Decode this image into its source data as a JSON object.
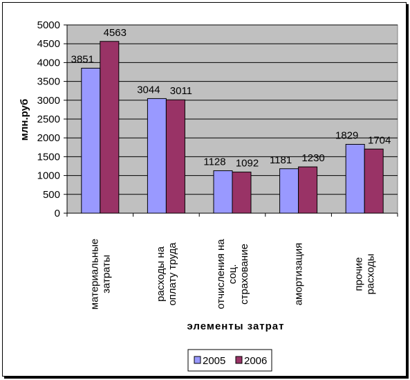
{
  "chart_data": {
    "type": "bar",
    "title": "",
    "xlabel": "элементы затрат",
    "ylabel": "млн.руб",
    "ylim": [
      0,
      5000
    ],
    "yticks": [
      "0",
      "500",
      "1000",
      "1500",
      "2000",
      "2500",
      "3000",
      "3500",
      "4000",
      "4500",
      "5000"
    ],
    "grid": true,
    "legend": "bottom",
    "categories": [
      [
        "материальные",
        "затраты"
      ],
      [
        "расходы на",
        "оплату труда"
      ],
      [
        "отчисления на",
        "соц.",
        "страхование"
      ],
      [
        "амортизация"
      ],
      [
        "прочие",
        "расходы"
      ]
    ],
    "series": [
      {
        "name": "2005",
        "color": "#9999ff",
        "values": [
          3851,
          3044,
          1128,
          1181,
          1829
        ],
        "labels": [
          "3851",
          "3044",
          "1128",
          "1181",
          "1829"
        ]
      },
      {
        "name": "2006",
        "color": "#993366",
        "values": [
          4563,
          3011,
          1092,
          1230,
          1704
        ],
        "labels": [
          "4563",
          "3011",
          "1092",
          "1230",
          "1704"
        ]
      }
    ],
    "plot_bg": "#c0c0c0"
  }
}
